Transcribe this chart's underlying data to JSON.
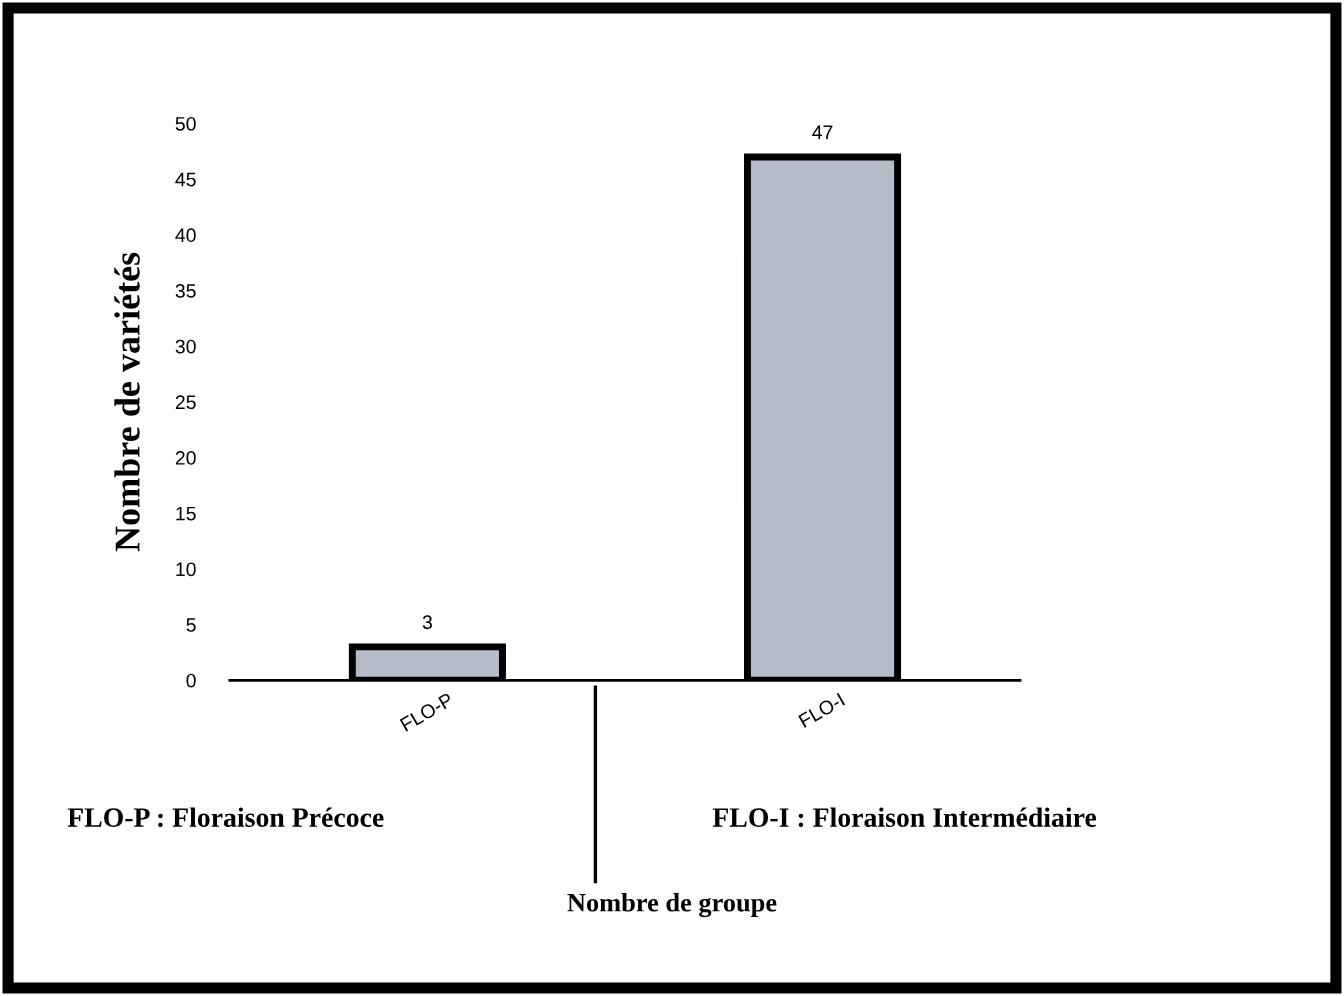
{
  "chart_data": {
    "type": "bar",
    "ylabel": "Nombre de variétés",
    "categories": [
      "FLO-P",
      "FLO-I"
    ],
    "values": [
      3,
      47
    ],
    "color": "#b4bcc8",
    "ylim": [
      0,
      50
    ],
    "yticks": [
      0,
      5,
      10,
      15,
      20,
      25,
      30,
      35,
      40,
      45,
      50
    ],
    "data_labels": true,
    "grid": false,
    "legend": false,
    "annotations": [
      "FLO-P : Floraison Précoce",
      "FLO-I : Floraison Intermédiaire",
      "Nombre de groupe"
    ]
  }
}
